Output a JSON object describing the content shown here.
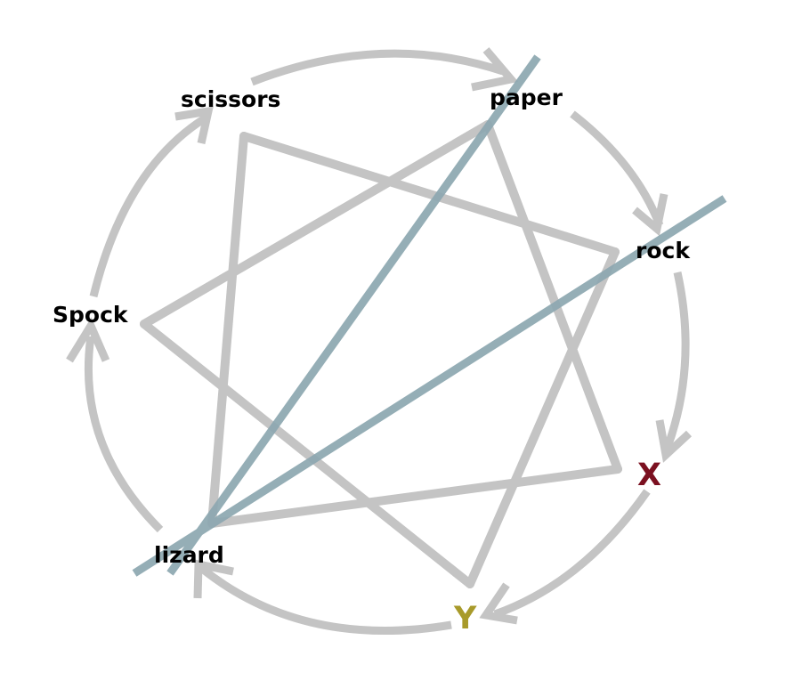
{
  "diagram": {
    "nodes": {
      "scissors": {
        "label": "scissors"
      },
      "paper": {
        "label": "paper"
      },
      "rock": {
        "label": "rock"
      },
      "spock": {
        "label": "Spock"
      },
      "lizard": {
        "label": "lizard"
      },
      "x": {
        "label": "X"
      },
      "y": {
        "label": "Y"
      }
    },
    "cycle_order": [
      "scissors",
      "paper",
      "rock",
      "X",
      "Y",
      "lizard",
      "Spock"
    ],
    "beats_edges": [
      [
        "scissors",
        "rock"
      ],
      [
        "rock",
        "lizard"
      ],
      [
        "lizard",
        "X"
      ],
      [
        "X",
        "paper"
      ],
      [
        "paper",
        "Spock"
      ],
      [
        "Spock",
        "Y"
      ],
      [
        "Y",
        "rock"
      ],
      [
        "lizard",
        "scissors"
      ]
    ],
    "highlighted_lines": [
      [
        "lizard",
        "paper"
      ],
      [
        "lizard",
        "rock"
      ]
    ],
    "colors": {
      "default_label": "#000000",
      "x_label": "#7b1020",
      "y_label": "#a89a2a",
      "gray_edge": "#c4c4c4",
      "blue_line": "#8ea8b1"
    }
  }
}
